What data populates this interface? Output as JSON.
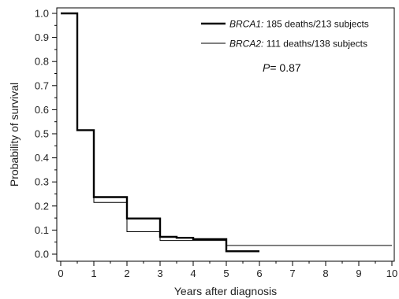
{
  "chart_data": {
    "type": "line",
    "subtype": "kaplan-meier step survival",
    "xlabel": "Years after diagnosis",
    "ylabel": "Probability of survival",
    "xlim": [
      0,
      10
    ],
    "ylim": [
      0,
      1.0
    ],
    "x_ticks": [
      "0",
      "1",
      "2",
      "3",
      "4",
      "5",
      "6",
      "7",
      "8",
      "9",
      "10"
    ],
    "y_ticks": [
      "0.0",
      "0.1",
      "0.2",
      "0.3",
      "0.4",
      "0.5",
      "0.6",
      "0.7",
      "0.8",
      "0.9",
      "1.0"
    ],
    "grid": false,
    "legend_position": "top-right",
    "annotation": {
      "p_label": "P",
      "p_value": "= 0.87"
    },
    "series": [
      {
        "name": "BRCA1:",
        "legend_rest": " 185 deaths/213 subjects",
        "line_style": "thick",
        "color": "#000000",
        "points": [
          [
            0,
            1.0
          ],
          [
            0.5,
            0.515
          ],
          [
            1,
            0.237
          ],
          [
            2,
            0.148
          ],
          [
            3,
            0.072
          ],
          [
            3.5,
            0.068
          ],
          [
            4,
            0.062
          ],
          [
            5,
            0.012
          ],
          [
            6,
            0.012
          ]
        ]
      },
      {
        "name": "BRCA2:",
        "legend_rest": " 111 deaths/138 subjects",
        "line_style": "thin",
        "color": "#000000",
        "points": [
          [
            0,
            1.0
          ],
          [
            0.5,
            0.515
          ],
          [
            1,
            0.215
          ],
          [
            2,
            0.093
          ],
          [
            3,
            0.057
          ],
          [
            5,
            0.036
          ],
          [
            10,
            0.036
          ]
        ]
      }
    ]
  }
}
